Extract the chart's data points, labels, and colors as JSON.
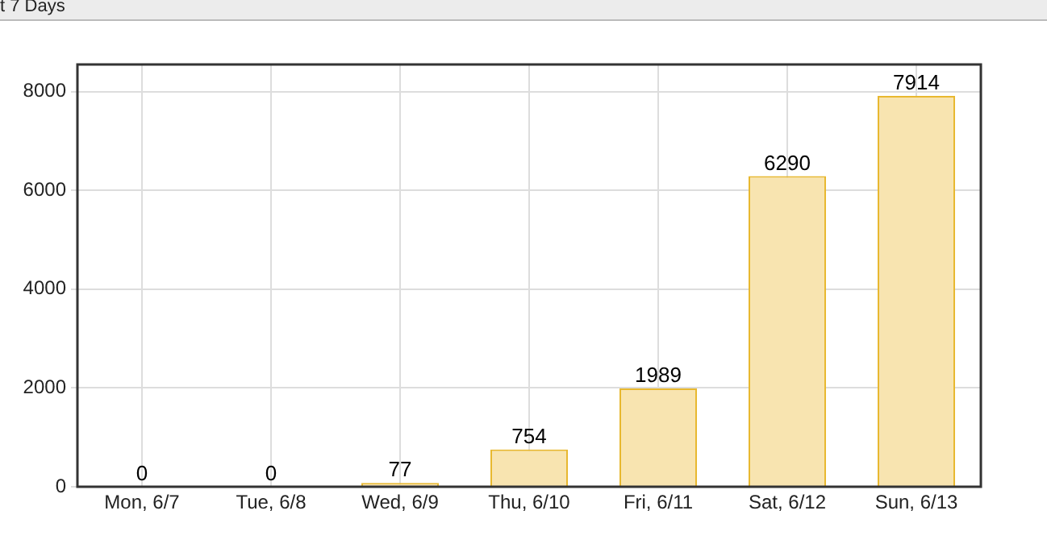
{
  "chart_data": {
    "type": "bar",
    "title": "t 7 Days",
    "categories": [
      "Mon, 6/7",
      "Tue, 6/8",
      "Wed, 6/9",
      "Thu, 6/10",
      "Fri, 6/11",
      "Sat, 6/12",
      "Sun, 6/13"
    ],
    "series": [
      {
        "color": "#f8e4b0",
        "values": [
          0,
          0,
          77,
          754,
          1989,
          6290,
          7914
        ]
      }
    ],
    "ylim": [
      0,
      8550
    ],
    "yticks": [
      0,
      2000,
      4000,
      6000,
      8000
    ],
    "grid": true,
    "data_labels": true
  }
}
